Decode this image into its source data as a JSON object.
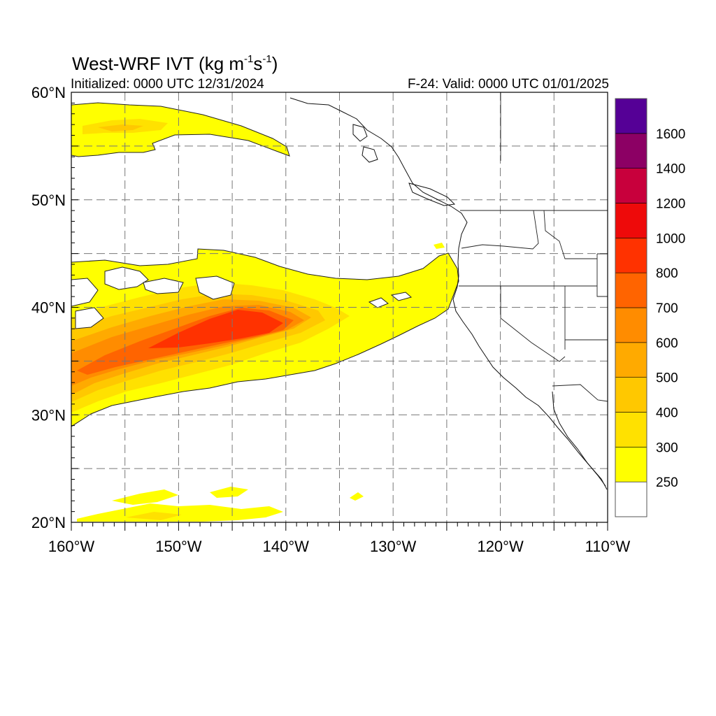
{
  "header": {
    "title_prefix": "West-WRF IVT (kg m",
    "title_exp1": "-1",
    "title_mid": "s",
    "title_exp2": "-1",
    "title_suffix": ")",
    "initialized": "Initialized: 0000 UTC 12/31/2024",
    "valid": "F-24: Valid: 0000 UTC 01/01/2025"
  },
  "map": {
    "lon_range": [
      -160,
      -110
    ],
    "lat_range": [
      20,
      60
    ],
    "lat_labels": [
      {
        "lat": 60,
        "text": "60°N"
      },
      {
        "lat": 50,
        "text": "50°N"
      },
      {
        "lat": 40,
        "text": "40°N"
      },
      {
        "lat": 30,
        "text": "30°N"
      },
      {
        "lat": 20,
        "text": "20°N"
      }
    ],
    "lon_labels": [
      {
        "lon": -160,
        "text": "160°W"
      },
      {
        "lon": -150,
        "text": "150°W"
      },
      {
        "lon": -140,
        "text": "140°W"
      },
      {
        "lon": -130,
        "text": "130°W"
      },
      {
        "lon": -120,
        "text": "120°W"
      },
      {
        "lon": -110,
        "text": "110°W"
      }
    ],
    "grid_lats": [
      25,
      30,
      35,
      40,
      45,
      50,
      55
    ],
    "grid_lons": [
      -155,
      -150,
      -145,
      -140,
      -135,
      -130,
      -125,
      -120,
      -115
    ]
  },
  "colorbar": {
    "levels": [
      250,
      300,
      400,
      500,
      600,
      700,
      800,
      1000,
      1200,
      1400,
      1600
    ],
    "colors": [
      "#ffffff",
      "#ffff00",
      "#ffe100",
      "#ffc800",
      "#ffaa00",
      "#ff8c00",
      "#ff6400",
      "#ff3200",
      "#ee0a0a",
      "#c8003c",
      "#8c0064",
      "#550096"
    ],
    "labels": [
      "250",
      "300",
      "400",
      "500",
      "600",
      "700",
      "800",
      "1000",
      "1200",
      "1400",
      "1600"
    ]
  }
}
